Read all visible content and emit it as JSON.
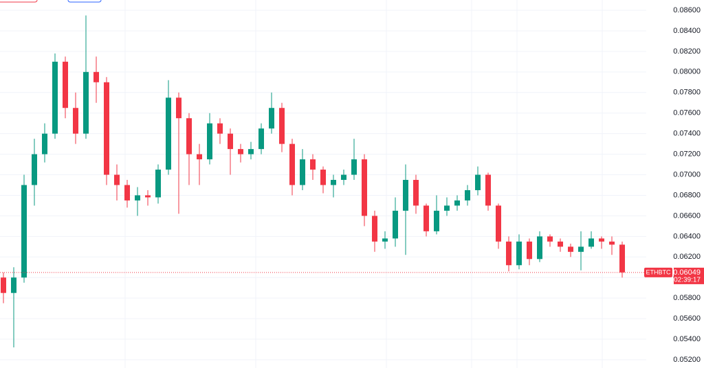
{
  "chart_data": {
    "type": "candlestick",
    "symbol": "ETHBTC",
    "countdown": "02:39:17",
    "last_price": 0.06049,
    "up_color": "#089981",
    "down_color": "#f23645",
    "grid": true,
    "ylim": [
      0.052,
      0.086
    ],
    "yticks": [
      {
        "value": 0.052,
        "label": "0.05200"
      },
      {
        "value": 0.054,
        "label": "0.05400"
      },
      {
        "value": 0.056,
        "label": "0.05600"
      },
      {
        "value": 0.058,
        "label": "0.05800"
      },
      {
        "value": 0.06,
        "label": "0.06000"
      },
      {
        "value": 0.062,
        "label": "0.06200"
      },
      {
        "value": 0.064,
        "label": "0.06400"
      },
      {
        "value": 0.066,
        "label": "0.06600"
      },
      {
        "value": 0.068,
        "label": "0.06800"
      },
      {
        "value": 0.07,
        "label": "0.07000"
      },
      {
        "value": 0.072,
        "label": "0.07200"
      },
      {
        "value": 0.074,
        "label": "0.07400"
      },
      {
        "value": 0.076,
        "label": "0.07600"
      },
      {
        "value": 0.078,
        "label": "0.07800"
      },
      {
        "value": 0.08,
        "label": "0.08000"
      },
      {
        "value": 0.082,
        "label": "0.08200"
      },
      {
        "value": 0.084,
        "label": "0.08400"
      },
      {
        "value": 0.086,
        "label": "0.08600"
      }
    ],
    "open": [
      0.06,
      0.0585,
      0.06,
      0.069,
      0.072,
      0.074,
      0.081,
      0.0765,
      0.074,
      0.08,
      0.079,
      0.07,
      0.069,
      0.0675,
      0.068,
      0.0678,
      0.0705,
      0.0775,
      0.0755,
      0.072,
      0.0715,
      0.075,
      0.074,
      0.0725,
      0.072,
      0.0725,
      0.0745,
      0.0765,
      0.073,
      0.069,
      0.0715,
      0.0705,
      0.069,
      0.0695,
      0.07,
      0.0715,
      0.066,
      0.0635,
      0.0638,
      0.0665,
      0.0695,
      0.067,
      0.0645,
      0.0665,
      0.067,
      0.0675,
      0.0685,
      0.07,
      0.067,
      0.0635,
      0.0612,
      0.0635,
      0.0618,
      0.064,
      0.0635,
      0.063,
      0.0625,
      0.063,
      0.0638,
      0.0635,
      0.0632
    ],
    "high": [
      0.0605,
      0.061,
      0.07,
      0.0735,
      0.075,
      0.0818,
      0.0815,
      0.078,
      0.0855,
      0.0815,
      0.0795,
      0.071,
      0.0695,
      0.0688,
      0.0685,
      0.071,
      0.0792,
      0.078,
      0.076,
      0.073,
      0.076,
      0.0755,
      0.0745,
      0.073,
      0.0732,
      0.075,
      0.078,
      0.077,
      0.0735,
      0.0725,
      0.072,
      0.0708,
      0.07,
      0.0705,
      0.0735,
      0.072,
      0.0665,
      0.0645,
      0.0678,
      0.071,
      0.07,
      0.0672,
      0.068,
      0.0678,
      0.068,
      0.069,
      0.0708,
      0.0702,
      0.0672,
      0.064,
      0.0642,
      0.0638,
      0.0645,
      0.0642,
      0.0638,
      0.0633,
      0.0645,
      0.0645,
      0.064,
      0.064,
      0.0635
    ],
    "low": [
      0.0575,
      0.0532,
      0.0595,
      0.067,
      0.0712,
      0.0735,
      0.0755,
      0.073,
      0.0735,
      0.077,
      0.069,
      0.0675,
      0.0668,
      0.066,
      0.067,
      0.0672,
      0.07,
      0.0662,
      0.069,
      0.069,
      0.071,
      0.073,
      0.07,
      0.0712,
      0.0715,
      0.072,
      0.074,
      0.0722,
      0.068,
      0.0685,
      0.0695,
      0.0682,
      0.0678,
      0.069,
      0.0695,
      0.065,
      0.0625,
      0.0628,
      0.063,
      0.0622,
      0.0662,
      0.064,
      0.0642,
      0.066,
      0.0665,
      0.067,
      0.068,
      0.0665,
      0.0628,
      0.0606,
      0.0608,
      0.0612,
      0.0615,
      0.063,
      0.0625,
      0.062,
      0.0607,
      0.0628,
      0.0628,
      0.0622,
      0.06
    ],
    "close": [
      0.0585,
      0.06,
      0.069,
      0.072,
      0.074,
      0.081,
      0.0765,
      0.074,
      0.08,
      0.079,
      0.07,
      0.069,
      0.0675,
      0.068,
      0.0678,
      0.0705,
      0.0775,
      0.0755,
      0.072,
      0.0715,
      0.075,
      0.074,
      0.0725,
      0.072,
      0.0725,
      0.0745,
      0.0765,
      0.073,
      0.069,
      0.0715,
      0.0705,
      0.069,
      0.0695,
      0.07,
      0.0715,
      0.066,
      0.0635,
      0.0638,
      0.0665,
      0.0695,
      0.067,
      0.0645,
      0.0665,
      0.067,
      0.0675,
      0.0685,
      0.07,
      0.067,
      0.0635,
      0.0612,
      0.0635,
      0.0618,
      0.064,
      0.0635,
      0.063,
      0.0625,
      0.063,
      0.0638,
      0.0635,
      0.0632,
      0.0605
    ]
  }
}
